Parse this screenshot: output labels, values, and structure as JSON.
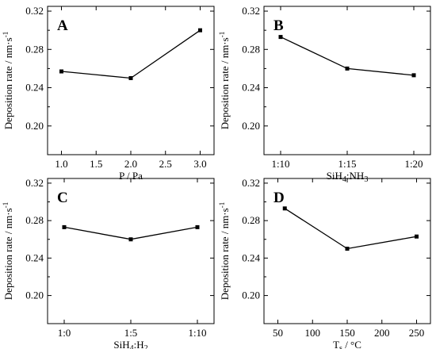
{
  "chart_data": [
    {
      "type": "line",
      "panel_label": "A",
      "x": [
        1.0,
        2.0,
        3.0
      ],
      "values": [
        0.257,
        0.25,
        0.3
      ],
      "xlabel": "P / Pa",
      "ylabel": "Deposition rate / nm·s⁻¹",
      "xticks": [
        "1.0",
        "1.5",
        "2.0",
        "2.5",
        "3.0"
      ],
      "xtick_values": [
        1.0,
        1.5,
        2.0,
        2.5,
        3.0
      ],
      "xlim": [
        0.8,
        3.2
      ],
      "ylim": [
        0.17,
        0.325
      ],
      "yticks": [
        "0.20",
        "0.24",
        "0.28",
        "0.32"
      ],
      "ytick_values": [
        0.2,
        0.24,
        0.28,
        0.32
      ],
      "grid": false,
      "marker": "square"
    },
    {
      "type": "line",
      "panel_label": "B",
      "categories": [
        "1:10",
        "1:15",
        "1:20"
      ],
      "values": [
        0.293,
        0.26,
        0.253
      ],
      "xlabel": "SiH4:NH3",
      "ylabel": "Deposition rate / nm·s⁻¹",
      "ylim": [
        0.17,
        0.325
      ],
      "yticks": [
        "0.20",
        "0.24",
        "0.28",
        "0.32"
      ],
      "ytick_values": [
        0.2,
        0.24,
        0.28,
        0.32
      ],
      "grid": false,
      "marker": "square"
    },
    {
      "type": "line",
      "panel_label": "C",
      "categories": [
        "1:0",
        "1:5",
        "1:10"
      ],
      "values": [
        0.273,
        0.26,
        0.273
      ],
      "xlabel": "SiH4:H2",
      "ylabel": "Deposition rate / nm·s⁻¹",
      "ylim": [
        0.17,
        0.325
      ],
      "yticks": [
        "0.20",
        "0.24",
        "0.28",
        "0.32"
      ],
      "ytick_values": [
        0.2,
        0.24,
        0.28,
        0.32
      ],
      "grid": false,
      "marker": "square"
    },
    {
      "type": "line",
      "panel_label": "D",
      "x": [
        60,
        150,
        250
      ],
      "values": [
        0.293,
        0.25,
        0.263
      ],
      "xlabel": "Ts / °C",
      "ylabel": "Deposition rate / nm·s⁻¹",
      "xticks": [
        "50",
        "100",
        "150",
        "200",
        "250"
      ],
      "xtick_values": [
        50,
        100,
        150,
        200,
        250
      ],
      "xlim": [
        30,
        270
      ],
      "ylim": [
        0.17,
        0.325
      ],
      "yticks": [
        "0.20",
        "0.24",
        "0.28",
        "0.32"
      ],
      "ytick_values": [
        0.2,
        0.24,
        0.28,
        0.32
      ],
      "grid": false,
      "marker": "square"
    }
  ]
}
